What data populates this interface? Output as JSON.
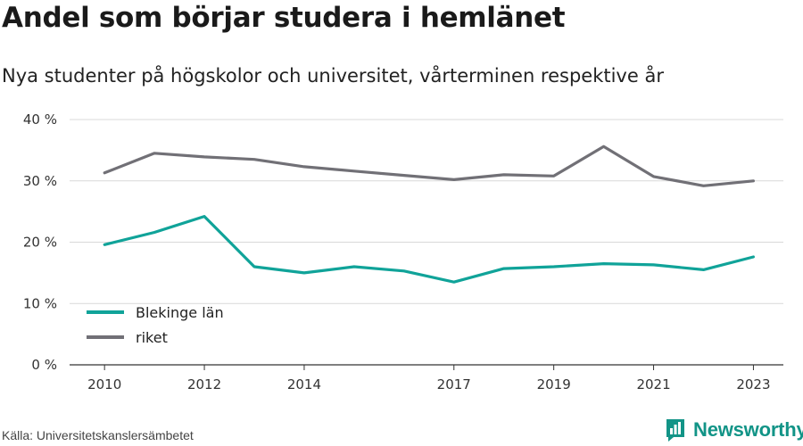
{
  "title": "Andel som börjar studera i hemlänet",
  "subtitle": "Nya studenter på högskolor och universitet, vårterminen respektive år",
  "source": "Källa: Universitetskanslersämbetet",
  "brand": {
    "name": "Newsworthy",
    "logo_icon": "newsworthy-logo-icon",
    "color": "#129487"
  },
  "chart_data": {
    "type": "line",
    "title": "Andel som börjar studera i hemlänet",
    "xlabel": "",
    "ylabel": "",
    "x": [
      2010,
      2011,
      2012,
      2013,
      2014,
      2015,
      2016,
      2017,
      2018,
      2019,
      2020,
      2021,
      2022,
      2023
    ],
    "x_tick_labels": [
      "2010",
      "2012",
      "2014",
      "2017",
      "2019",
      "2021",
      "2023"
    ],
    "x_tick_values": [
      2010,
      2012,
      2014,
      2017,
      2019,
      2021,
      2023
    ],
    "ylim": [
      0,
      40
    ],
    "y_ticks": [
      0,
      10,
      20,
      30,
      40
    ],
    "y_tick_labels": [
      "0 %",
      "10 %",
      "20 %",
      "30 %",
      "40 %"
    ],
    "grid": true,
    "legend_position": "bottom-left",
    "series": [
      {
        "name": "Blekinge län",
        "color": "#10a399",
        "values": [
          19.6,
          21.6,
          24.2,
          16.0,
          15.0,
          16.0,
          15.3,
          13.5,
          15.7,
          16.0,
          16.5,
          16.3,
          15.5,
          17.6
        ]
      },
      {
        "name": "riket",
        "color": "#717076",
        "values": [
          31.3,
          34.5,
          33.9,
          33.5,
          32.3,
          31.6,
          30.9,
          30.2,
          31.0,
          30.8,
          35.6,
          30.7,
          29.2,
          30.0
        ]
      }
    ]
  }
}
